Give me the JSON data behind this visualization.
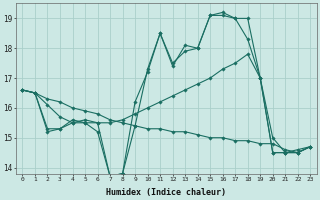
{
  "xlabel": "Humidex (Indice chaleur)",
  "xlim": [
    -0.5,
    23.5
  ],
  "ylim": [
    13.8,
    19.5
  ],
  "yticks": [
    14,
    15,
    16,
    17,
    18,
    19
  ],
  "xticks": [
    0,
    1,
    2,
    3,
    4,
    5,
    6,
    7,
    8,
    9,
    10,
    11,
    12,
    13,
    14,
    15,
    16,
    17,
    18,
    19,
    20,
    21,
    22,
    23
  ],
  "bg_color": "#cce8e4",
  "grid_color": "#aacfca",
  "line_color": "#1a6e62",
  "series": [
    {
      "x": [
        0,
        1,
        2,
        3,
        4,
        5,
        6,
        7,
        8,
        9,
        10,
        11,
        12,
        13,
        14,
        15,
        16,
        17,
        18,
        19,
        20,
        21,
        22,
        23
      ],
      "y": [
        16.6,
        16.5,
        16.3,
        16.2,
        16.0,
        15.9,
        15.8,
        15.6,
        15.5,
        15.4,
        15.3,
        15.3,
        15.2,
        15.2,
        15.1,
        15.0,
        15.0,
        14.9,
        14.9,
        14.8,
        14.8,
        14.6,
        14.5,
        14.7
      ]
    },
    {
      "x": [
        0,
        1,
        2,
        3,
        4,
        5,
        6,
        7,
        8,
        9,
        10,
        11,
        12,
        13,
        14,
        15,
        16,
        17,
        18,
        19,
        20,
        21,
        22,
        23
      ],
      "y": [
        16.6,
        16.5,
        16.1,
        15.7,
        15.5,
        15.5,
        15.5,
        15.5,
        15.6,
        15.8,
        16.0,
        16.2,
        16.4,
        16.6,
        16.8,
        17.0,
        17.3,
        17.5,
        17.8,
        17.0,
        15.0,
        14.5,
        14.5,
        14.7
      ]
    },
    {
      "x": [
        0,
        1,
        2,
        3,
        4,
        5,
        6,
        7,
        8,
        9,
        10,
        11,
        12,
        13,
        14,
        15,
        16,
        17,
        18,
        19,
        20,
        21,
        22,
        23
      ],
      "y": [
        16.6,
        16.5,
        15.2,
        15.3,
        15.6,
        15.5,
        15.2,
        13.7,
        13.8,
        15.4,
        17.3,
        18.5,
        17.5,
        17.9,
        18.0,
        19.1,
        19.1,
        19.0,
        18.3,
        17.0,
        14.5,
        14.5,
        14.6,
        14.7
      ]
    },
    {
      "x": [
        0,
        1,
        2,
        3,
        4,
        5,
        6,
        7,
        8,
        9,
        10,
        11,
        12,
        13,
        14,
        15,
        16,
        17,
        18,
        19,
        20,
        21,
        22,
        23
      ],
      "y": [
        16.6,
        16.5,
        15.3,
        15.3,
        15.5,
        15.6,
        15.5,
        13.7,
        13.8,
        16.2,
        17.2,
        18.5,
        17.4,
        18.1,
        18.0,
        19.1,
        19.2,
        19.0,
        19.0,
        17.0,
        14.5,
        14.5,
        14.5,
        14.7
      ]
    }
  ]
}
